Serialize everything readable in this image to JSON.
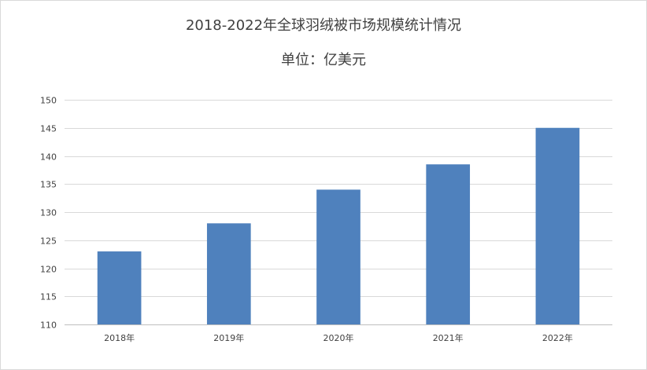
{
  "chart_data": {
    "type": "bar",
    "title": "2018-2022年全球羽绒被市场规模统计情况",
    "subtitle": "单位：亿美元",
    "xlabel": "",
    "ylabel": "",
    "categories": [
      "2018年",
      "2019年",
      "2020年",
      "2021年",
      "2022年"
    ],
    "series": [
      {
        "values": [
          123,
          128,
          134,
          138.5,
          145
        ],
        "color": "#4f81bd"
      }
    ],
    "ylim": [
      110,
      150
    ],
    "yticks": [
      110,
      115,
      120,
      125,
      130,
      135,
      140,
      145,
      150
    ],
    "grid": true,
    "legend": "none"
  }
}
